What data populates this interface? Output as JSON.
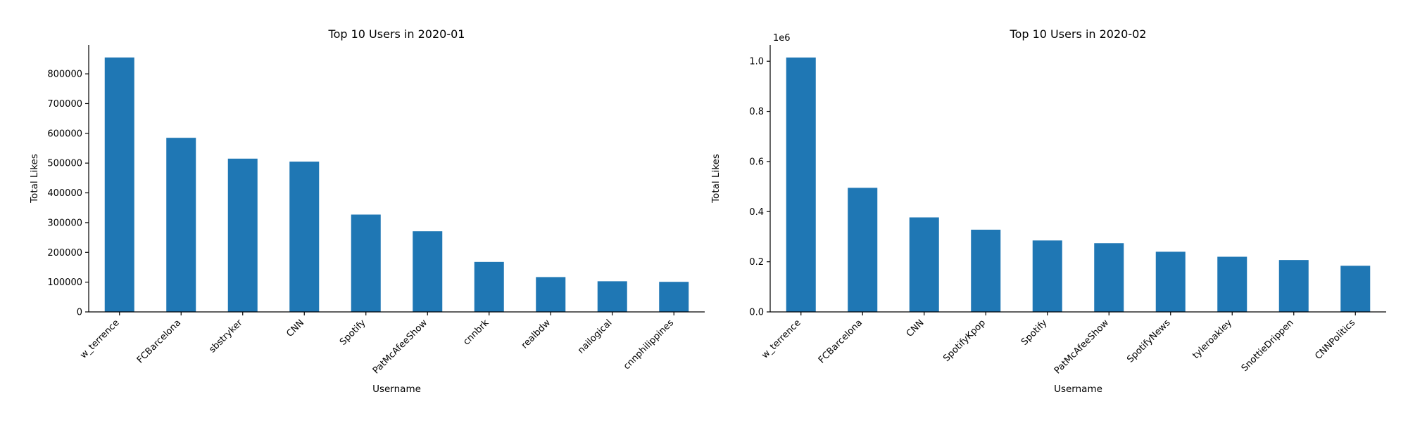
{
  "figure": {
    "background": "#ffffff",
    "bar_color": "#1f77b4"
  },
  "chart_data": [
    {
      "type": "bar",
      "title": "Top 10 Users in 2020-01",
      "xlabel": "Username",
      "ylabel": "Total Likes",
      "categories": [
        "w_terrence",
        "FCBarcelona",
        "sbstryker",
        "CNN",
        "Spotify",
        "PatMcAfeeShow",
        "cnnbrk",
        "realbdw",
        "nailogical",
        "cnnphilippines"
      ],
      "values": [
        855000,
        585000,
        515000,
        505000,
        327000,
        271000,
        168000,
        117000,
        103000,
        101000
      ],
      "ylim": [
        0,
        897000
      ],
      "yticks": [
        0,
        100000,
        200000,
        300000,
        400000,
        500000,
        600000,
        700000,
        800000
      ],
      "ytick_labels": [
        "0",
        "100000",
        "200000",
        "300000",
        "400000",
        "500000",
        "600000",
        "700000",
        "800000"
      ],
      "offset_label": "",
      "grid": false,
      "legend": "none"
    },
    {
      "type": "bar",
      "title": "Top 10 Users in 2020-02",
      "xlabel": "Username",
      "ylabel": "Total Likes",
      "categories": [
        "w_terrence",
        "FCBarcelona",
        "CNN",
        "SpotifyKpop",
        "Spotify",
        "PatMcAfeeShow",
        "SpotifyNews",
        "tyleroakley",
        "SnottieDrippen",
        "CNNPolitics"
      ],
      "values": [
        1015000,
        495000,
        377000,
        328000,
        285000,
        274000,
        240000,
        220000,
        207000,
        184000
      ],
      "ylim": [
        0,
        1065000
      ],
      "yticks": [
        0,
        200000,
        400000,
        600000,
        800000,
        1000000
      ],
      "ytick_labels": [
        "0.0",
        "0.2",
        "0.4",
        "0.6",
        "0.8",
        "1.0"
      ],
      "offset_label": "1e6",
      "grid": false,
      "legend": "none"
    }
  ]
}
